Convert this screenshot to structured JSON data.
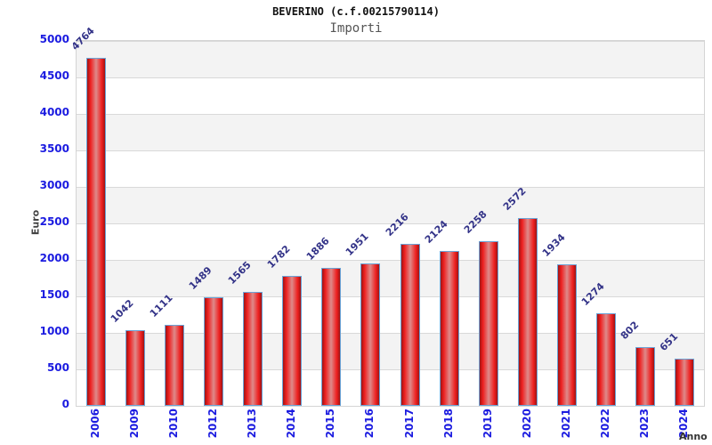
{
  "title": "BEVERINO (c.f.00215790114)",
  "subtitle": "Importi",
  "chart_data": {
    "type": "bar",
    "title": "BEVERINO (c.f.00215790114)",
    "subtitle": "Importi",
    "categories": [
      "2006",
      "2009",
      "2010",
      "2012",
      "2013",
      "2014",
      "2015",
      "2016",
      "2017",
      "2018",
      "2019",
      "2020",
      "2021",
      "2022",
      "2023",
      "2024"
    ],
    "values": [
      4764,
      1042,
      1111,
      1489,
      1565,
      1782,
      1886,
      1951,
      2216,
      2124,
      2258,
      2572,
      1934,
      1274,
      802,
      651
    ],
    "xlabel": "Anno",
    "ylabel": "Euro",
    "ylim": [
      0,
      5000
    ],
    "yticks": [
      0,
      500,
      1000,
      1500,
      2000,
      2500,
      3000,
      3500,
      4000,
      4500,
      5000
    ],
    "grid": "alternating horizontal bands every 500, gridlines at each tick",
    "legend": "none",
    "colors": {
      "bar_fill_edge": "#9e1414",
      "bar_fill_main": "#ee1f1f",
      "bar_fill_center": "#de8a8a",
      "bar_border": "#6ba3d6",
      "axis_tick_label": "#1b1be0",
      "value_label": "#333388",
      "axis_title": "#444444",
      "subtitle_text": "#555555",
      "band_gray": "#f3f3f3",
      "grid_line": "#d9d9d9"
    }
  }
}
